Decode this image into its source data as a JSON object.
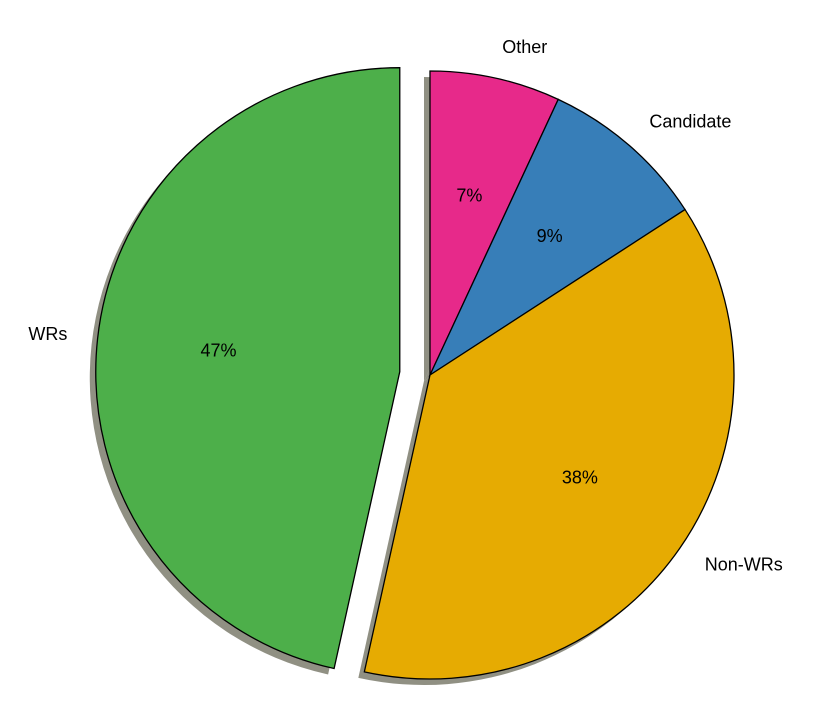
{
  "chart_data": {
    "type": "pie",
    "categories": [
      "Other",
      "Candidate",
      "Non-WRs",
      "WRs"
    ],
    "values": [
      7,
      9,
      38,
      47
    ],
    "value_labels": [
      "7%",
      "9%",
      "38%",
      "47%"
    ],
    "colors": [
      "#e7298a",
      "#377eb8",
      "#e6ab02",
      "#4daf4a"
    ],
    "explode": [
      0,
      0,
      0,
      0.1
    ],
    "shadow": true
  }
}
